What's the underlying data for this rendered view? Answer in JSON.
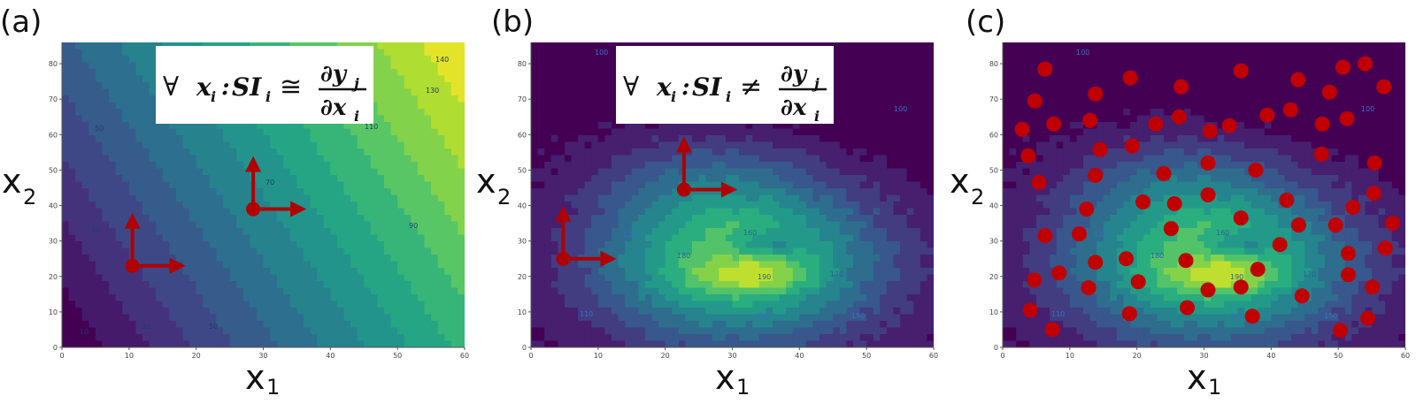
{
  "chart_data": [
    {
      "panel": "(a)",
      "type": "heatmap",
      "subtype": "filled-contour",
      "xlabel": "x",
      "xlabel_sub": "1",
      "ylabel": "x",
      "ylabel_sub": "2",
      "xlim": [
        0,
        60
      ],
      "ylim": [
        0,
        86
      ],
      "xticks": [
        0,
        10,
        20,
        30,
        40,
        50,
        60
      ],
      "yticks": [
        0,
        10,
        20,
        30,
        40,
        50,
        60,
        70,
        80
      ],
      "field": "planar",
      "levels": [
        20,
        30,
        40,
        50,
        60,
        70,
        80,
        90,
        100,
        110,
        120,
        130,
        140
      ],
      "contour_labels": [
        "10",
        "30",
        "50",
        "70",
        "90",
        "110",
        "130",
        "140",
        "30",
        "50"
      ],
      "formula": {
        "prefix": "∀",
        "var": "x",
        "var_sub": "i",
        "colon": ":",
        "lhs": "SI",
        "lhs_sub": "i",
        "relation": "≅",
        "num": "∂y",
        "num_sub": "j",
        "den": "∂x",
        "den_sub": "i"
      },
      "arrow_origins": [
        {
          "x": 10.5,
          "y": 23
        },
        {
          "x": 28.5,
          "y": 39
        }
      ]
    },
    {
      "panel": "(b)",
      "type": "heatmap",
      "subtype": "filled-contour",
      "xlabel": "x",
      "xlabel_sub": "1",
      "ylabel": "x",
      "ylabel_sub": "2",
      "xlim": [
        0,
        60
      ],
      "ylim": [
        0,
        86
      ],
      "xticks": [
        0,
        10,
        20,
        30,
        40,
        50,
        60
      ],
      "yticks": [
        0,
        10,
        20,
        30,
        40,
        50,
        60,
        70,
        80
      ],
      "field": "peaked",
      "levels": [
        100,
        110,
        120,
        130,
        140,
        150,
        160,
        170,
        180,
        190
      ],
      "contour_labels": [
        "100",
        "100",
        "110",
        "120",
        "180",
        "190",
        "160",
        "170",
        "150",
        "160"
      ],
      "formula": {
        "prefix": "∀",
        "var": "x",
        "var_sub": "i",
        "colon": ":",
        "lhs": "SI",
        "lhs_sub": "i",
        "relation": "≠",
        "num": "∂y",
        "num_sub": "j",
        "den": "∂x",
        "den_sub": "i"
      },
      "arrow_origins": [
        {
          "x": 4.8,
          "y": 25
        },
        {
          "x": 22.8,
          "y": 44.5
        }
      ]
    },
    {
      "panel": "(c)",
      "type": "scatter",
      "subtype": "points over filled-contour",
      "xlabel": "x",
      "xlabel_sub": "1",
      "ylabel": "x",
      "ylabel_sub": "2",
      "xlim": [
        0,
        60
      ],
      "ylim": [
        0,
        86
      ],
      "xticks": [
        0,
        10,
        20,
        30,
        40,
        50,
        60
      ],
      "yticks": [
        0,
        10,
        20,
        30,
        40,
        50,
        60,
        70,
        80
      ],
      "field": "peaked",
      "levels": [
        100,
        110,
        120,
        130,
        140,
        150,
        160,
        170,
        180,
        190
      ],
      "contour_labels": [
        "100",
        "100",
        "110",
        "120",
        "180",
        "190",
        "160",
        "170",
        "150",
        "160"
      ],
      "points": [
        [
          6.3,
          78.5
        ],
        [
          19,
          76
        ],
        [
          26.6,
          73.5
        ],
        [
          35.5,
          78
        ],
        [
          44,
          75.5
        ],
        [
          50.7,
          79
        ],
        [
          54,
          80
        ],
        [
          56.8,
          73.5
        ],
        [
          4.8,
          69.5
        ],
        [
          13.8,
          71.5
        ],
        [
          48.7,
          72
        ],
        [
          2.9,
          61.5
        ],
        [
          7.6,
          63
        ],
        [
          13,
          64
        ],
        [
          22.8,
          63
        ],
        [
          26.3,
          65
        ],
        [
          30.9,
          61
        ],
        [
          33.8,
          62.5
        ],
        [
          39.4,
          65.5
        ],
        [
          42.9,
          67
        ],
        [
          47.6,
          63
        ],
        [
          51.3,
          64.5
        ],
        [
          3.8,
          54
        ],
        [
          14.5,
          55.8
        ],
        [
          19.3,
          56.8
        ],
        [
          47.5,
          54.5
        ],
        [
          5.4,
          46.5
        ],
        [
          13.8,
          48.5
        ],
        [
          24,
          49
        ],
        [
          30.6,
          52
        ],
        [
          37.7,
          50
        ],
        [
          55.4,
          52
        ],
        [
          20.9,
          41
        ],
        [
          25.6,
          40.5
        ],
        [
          30.6,
          43
        ],
        [
          42.3,
          41.5
        ],
        [
          55.3,
          43.5
        ],
        [
          12.5,
          39
        ],
        [
          35.5,
          36.5
        ],
        [
          52.2,
          39.5
        ],
        [
          58.1,
          35
        ],
        [
          6.3,
          31.5
        ],
        [
          11.4,
          32
        ],
        [
          25.1,
          33.5
        ],
        [
          44.1,
          34.5
        ],
        [
          49.6,
          34.5
        ],
        [
          41.3,
          29
        ],
        [
          51.5,
          26.5
        ],
        [
          57,
          28
        ],
        [
          13.8,
          24
        ],
        [
          18.4,
          25
        ],
        [
          27.3,
          24.5
        ],
        [
          38,
          22
        ],
        [
          4.7,
          19
        ],
        [
          8.4,
          21
        ],
        [
          20.2,
          18.5
        ],
        [
          30.6,
          16.2
        ],
        [
          35.5,
          17
        ],
        [
          44.6,
          14.5
        ],
        [
          51.5,
          20.5
        ],
        [
          55.1,
          17
        ],
        [
          12.8,
          16.8
        ],
        [
          4.1,
          10.5
        ],
        [
          7.4,
          5
        ],
        [
          18.9,
          9.5
        ],
        [
          27.5,
          11.2
        ],
        [
          37.2,
          8.8
        ],
        [
          50.3,
          4.8
        ],
        [
          54.4,
          8.2
        ]
      ]
    }
  ]
}
